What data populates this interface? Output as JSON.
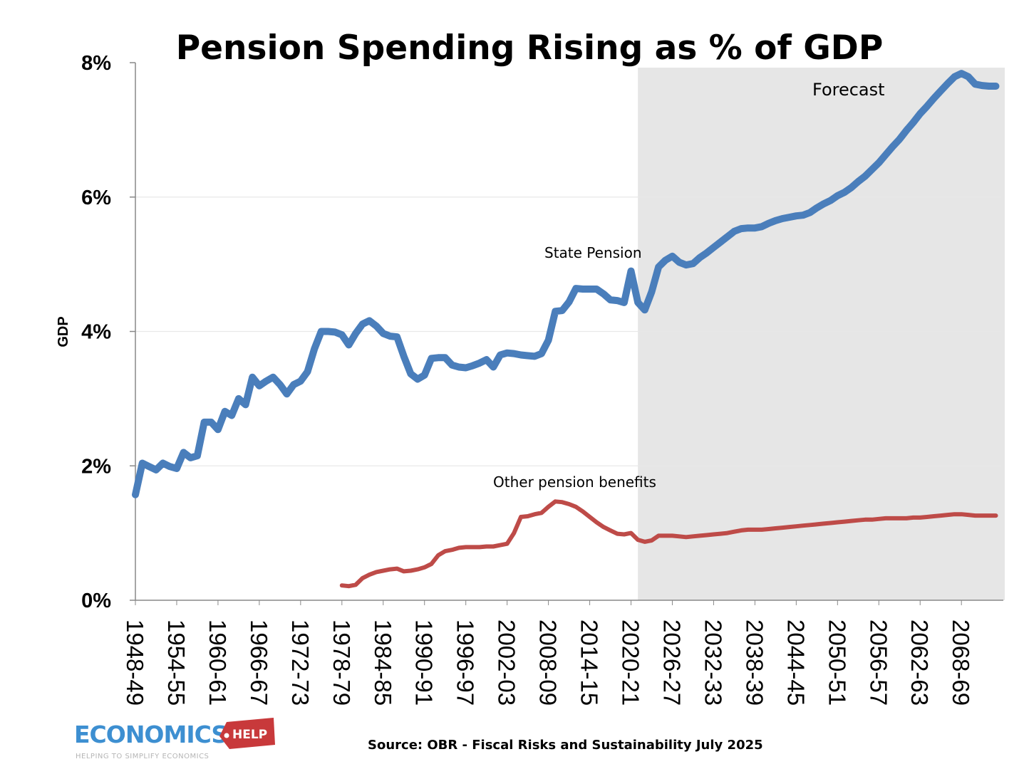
{
  "colors": {
    "state_pension": "#4a7ebb",
    "other_pension": "#be4b48",
    "forecast_shade": "#e6e6e6",
    "grid": "#e8e8e8"
  },
  "logo": {
    "main": "ECONOMICS",
    "tag": "HELP",
    "tagline": "HELPING TO SIMPLIFY ECONOMICS"
  },
  "source": "Source: OBR - Fiscal Risks and Sustainability July 2025",
  "chart_data": {
    "type": "line",
    "title": "Pension Spending Rising as % of GDP",
    "xlabel": "",
    "ylabel": "GDP",
    "ylim": [
      0,
      8
    ],
    "yticks": [
      "0%",
      "2%",
      "4%",
      "6%",
      "8%"
    ],
    "grid": true,
    "legend": "none",
    "forecast_region": {
      "label": "Forecast",
      "from": "2021-22",
      "to": "2073-74"
    },
    "xtick_labels": [
      "1948-49",
      "1954-55",
      "1960-61",
      "1966-67",
      "1972-73",
      "1978-79",
      "1984-85",
      "1990-91",
      "1996-97",
      "2002-03",
      "2008-09",
      "2014-15",
      "2020-21",
      "2026-27",
      "2032-33",
      "2038-39",
      "2044-45",
      "2050-51",
      "2056-57",
      "2062-63",
      "2068-69"
    ],
    "x": [
      "1948-49",
      "1949-50",
      "1950-51",
      "1951-52",
      "1952-53",
      "1953-54",
      "1954-55",
      "1955-56",
      "1956-57",
      "1957-58",
      "1958-59",
      "1959-60",
      "1960-61",
      "1961-62",
      "1962-63",
      "1963-64",
      "1964-65",
      "1965-66",
      "1966-67",
      "1967-68",
      "1968-69",
      "1969-70",
      "1970-71",
      "1971-72",
      "1972-73",
      "1973-74",
      "1974-75",
      "1975-76",
      "1976-77",
      "1977-78",
      "1978-79",
      "1979-80",
      "1980-81",
      "1981-82",
      "1982-83",
      "1983-84",
      "1984-85",
      "1985-86",
      "1986-87",
      "1987-88",
      "1988-89",
      "1989-90",
      "1990-91",
      "1991-92",
      "1992-93",
      "1993-94",
      "1994-95",
      "1995-96",
      "1996-97",
      "1997-98",
      "1998-99",
      "1999-00",
      "2000-01",
      "2001-02",
      "2002-03",
      "2003-04",
      "2004-05",
      "2005-06",
      "2006-07",
      "2007-08",
      "2008-09",
      "2009-10",
      "2010-11",
      "2011-12",
      "2012-13",
      "2013-14",
      "2014-15",
      "2015-16",
      "2016-17",
      "2017-18",
      "2018-19",
      "2019-20",
      "2020-21",
      "2021-22",
      "2022-23",
      "2023-24",
      "2024-25",
      "2025-26",
      "2026-27",
      "2027-28",
      "2028-29",
      "2029-30",
      "2030-31",
      "2031-32",
      "2032-33",
      "2033-34",
      "2034-35",
      "2035-36",
      "2036-37",
      "2037-38",
      "2038-39",
      "2039-40",
      "2040-41",
      "2041-42",
      "2042-43",
      "2043-44",
      "2044-45",
      "2045-46",
      "2046-47",
      "2047-48",
      "2048-49",
      "2049-50",
      "2050-51",
      "2051-52",
      "2052-53",
      "2053-54",
      "2054-55",
      "2055-56",
      "2056-57",
      "2057-58",
      "2058-59",
      "2059-60",
      "2060-61",
      "2061-62",
      "2062-63",
      "2063-64",
      "2064-65",
      "2065-66",
      "2066-67",
      "2067-68",
      "2068-69",
      "2069-70",
      "2070-71",
      "2071-72",
      "2072-73",
      "2073-74"
    ],
    "series": [
      {
        "name": "State Pension",
        "values": [
          1.57,
          2.04,
          1.99,
          1.94,
          2.04,
          1.99,
          1.96,
          2.2,
          2.12,
          2.15,
          2.65,
          2.65,
          2.54,
          2.81,
          2.75,
          3.0,
          2.91,
          3.32,
          3.19,
          3.26,
          3.32,
          3.21,
          3.07,
          3.21,
          3.26,
          3.4,
          3.74,
          4.0,
          4.0,
          3.99,
          3.95,
          3.8,
          3.97,
          4.11,
          4.16,
          4.08,
          3.97,
          3.93,
          3.92,
          3.63,
          3.37,
          3.29,
          3.35,
          3.6,
          3.61,
          3.61,
          3.5,
          3.47,
          3.46,
          3.49,
          3.53,
          3.58,
          3.47,
          3.65,
          3.68,
          3.67,
          3.65,
          3.64,
          3.63,
          3.67,
          3.87,
          4.3,
          4.31,
          4.44,
          4.64,
          4.63,
          4.63,
          4.63,
          4.56,
          4.47,
          4.46,
          4.43,
          4.9,
          4.43,
          4.32,
          4.59,
          4.96,
          5.06,
          5.12,
          5.03,
          4.99,
          5.01,
          5.1,
          5.17,
          5.25,
          5.33,
          5.41,
          5.49,
          5.53,
          5.54,
          5.54,
          5.56,
          5.61,
          5.65,
          5.68,
          5.7,
          5.72,
          5.73,
          5.77,
          5.84,
          5.9,
          5.95,
          6.02,
          6.07,
          6.14,
          6.23,
          6.31,
          6.41,
          6.51,
          6.63,
          6.75,
          6.86,
          6.99,
          7.11,
          7.24,
          7.35,
          7.47,
          7.58,
          7.69,
          7.79,
          7.84,
          7.79,
          7.68,
          7.66,
          7.65,
          7.65
        ]
      },
      {
        "name": "Other pension benefits",
        "values": [
          null,
          null,
          null,
          null,
          null,
          null,
          null,
          null,
          null,
          null,
          null,
          null,
          null,
          null,
          null,
          null,
          null,
          null,
          null,
          null,
          null,
          null,
          null,
          null,
          null,
          null,
          null,
          null,
          null,
          null,
          0.22,
          0.21,
          0.23,
          0.33,
          0.38,
          0.42,
          0.44,
          0.46,
          0.47,
          0.43,
          0.44,
          0.46,
          0.49,
          0.54,
          0.67,
          0.73,
          0.75,
          0.78,
          0.79,
          0.79,
          0.79,
          0.8,
          0.8,
          0.82,
          0.84,
          1.0,
          1.24,
          1.25,
          1.28,
          1.3,
          1.39,
          1.47,
          1.46,
          1.43,
          1.39,
          1.32,
          1.24,
          1.16,
          1.09,
          1.04,
          0.99,
          0.98,
          1.0,
          0.9,
          0.87,
          0.89,
          0.96,
          0.96,
          0.96,
          0.95,
          0.94,
          0.95,
          0.96,
          0.97,
          0.98,
          0.99,
          1.0,
          1.02,
          1.04,
          1.05,
          1.05,
          1.05,
          1.06,
          1.07,
          1.08,
          1.09,
          1.1,
          1.11,
          1.12,
          1.13,
          1.14,
          1.15,
          1.16,
          1.17,
          1.18,
          1.19,
          1.2,
          1.2,
          1.21,
          1.22,
          1.22,
          1.22,
          1.22,
          1.23,
          1.23,
          1.24,
          1.25,
          1.26,
          1.27,
          1.28,
          1.28,
          1.27,
          1.26,
          1.26,
          1.26,
          1.26
        ]
      }
    ]
  }
}
